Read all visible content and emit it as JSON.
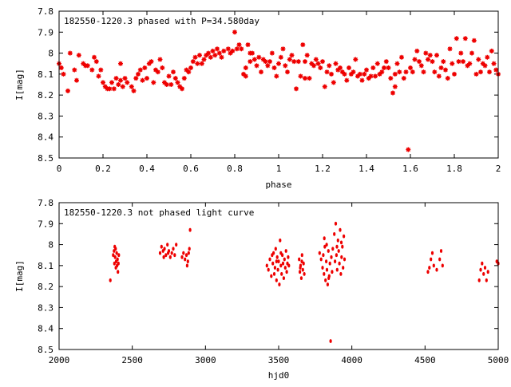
{
  "colors": {
    "points": "#ee0000",
    "axes": "#000000",
    "background": "#ffffff"
  },
  "chart_data": [
    {
      "type": "scatter",
      "title": "182550-1220.3 phased with P=34.580day",
      "xlabel": "phase",
      "ylabel": "I[mag]",
      "xlim": [
        0,
        2
      ],
      "ylim": [
        8.5,
        7.8
      ],
      "y_inverted": true,
      "xticks": [
        "0",
        "0.2",
        "0.4",
        "0.6",
        "0.8",
        "1",
        "1.2",
        "1.4",
        "1.6",
        "1.8",
        "2"
      ],
      "yticks": [
        "7.8",
        "7.9",
        "8",
        "8.1",
        "8.2",
        "8.3",
        "8.4",
        "8.5"
      ],
      "marker": "star",
      "grid": false,
      "points": [
        [
          0.0,
          8.05
        ],
        [
          0.01,
          8.07
        ],
        [
          0.02,
          8.1
        ],
        [
          0.04,
          8.18
        ],
        [
          0.05,
          8.0
        ],
        [
          0.07,
          8.08
        ],
        [
          0.08,
          8.13
        ],
        [
          0.09,
          8.01
        ],
        [
          0.11,
          8.05
        ],
        [
          0.12,
          8.06
        ],
        [
          0.13,
          8.06
        ],
        [
          0.15,
          8.08
        ],
        [
          0.16,
          8.02
        ],
        [
          0.17,
          8.04
        ],
        [
          0.18,
          8.11
        ],
        [
          0.19,
          8.08
        ],
        [
          0.2,
          8.14
        ],
        [
          0.21,
          8.16
        ],
        [
          0.22,
          8.17
        ],
        [
          0.23,
          8.17
        ],
        [
          0.24,
          8.14
        ],
        [
          0.25,
          8.17
        ],
        [
          0.26,
          8.12
        ],
        [
          0.27,
          8.15
        ],
        [
          0.28,
          8.05
        ],
        [
          0.28,
          8.13
        ],
        [
          0.29,
          8.16
        ],
        [
          0.3,
          8.12
        ],
        [
          0.31,
          8.14
        ],
        [
          0.33,
          8.16
        ],
        [
          0.34,
          8.18
        ],
        [
          0.35,
          8.12
        ],
        [
          0.36,
          8.1
        ],
        [
          0.37,
          8.08
        ],
        [
          0.38,
          8.13
        ],
        [
          0.39,
          8.07
        ],
        [
          0.4,
          8.12
        ],
        [
          0.41,
          8.05
        ],
        [
          0.42,
          8.04
        ],
        [
          0.43,
          8.14
        ],
        [
          0.44,
          8.08
        ],
        [
          0.45,
          8.09
        ],
        [
          0.46,
          8.03
        ],
        [
          0.47,
          8.07
        ],
        [
          0.48,
          8.14
        ],
        [
          0.49,
          8.15
        ],
        [
          0.5,
          8.11
        ],
        [
          0.51,
          8.15
        ],
        [
          0.52,
          8.09
        ],
        [
          0.53,
          8.12
        ],
        [
          0.54,
          8.14
        ],
        [
          0.55,
          8.16
        ],
        [
          0.56,
          8.17
        ],
        [
          0.57,
          8.12
        ],
        [
          0.58,
          8.08
        ],
        [
          0.59,
          8.09
        ],
        [
          0.6,
          8.07
        ],
        [
          0.61,
          8.04
        ],
        [
          0.62,
          8.02
        ],
        [
          0.63,
          8.05
        ],
        [
          0.64,
          8.01
        ],
        [
          0.65,
          8.05
        ],
        [
          0.66,
          8.03
        ],
        [
          0.67,
          8.01
        ],
        [
          0.68,
          8.0
        ],
        [
          0.69,
          8.02
        ],
        [
          0.7,
          7.99
        ],
        [
          0.71,
          8.01
        ],
        [
          0.72,
          7.98
        ],
        [
          0.73,
          8.0
        ],
        [
          0.74,
          8.02
        ],
        [
          0.75,
          7.99
        ],
        [
          0.77,
          7.98
        ],
        [
          0.78,
          8.0
        ],
        [
          0.79,
          7.99
        ],
        [
          0.8,
          7.9
        ],
        [
          0.81,
          7.98
        ],
        [
          0.82,
          7.96
        ],
        [
          0.83,
          7.98
        ],
        [
          0.84,
          8.1
        ],
        [
          0.85,
          8.07
        ],
        [
          0.85,
          8.11
        ],
        [
          0.86,
          7.96
        ],
        [
          0.87,
          8.0
        ],
        [
          0.87,
          8.04
        ],
        [
          0.88,
          8.0
        ],
        [
          0.89,
          8.03
        ],
        [
          0.9,
          8.06
        ],
        [
          0.91,
          8.02
        ],
        [
          0.92,
          8.09
        ],
        [
          0.93,
          8.03
        ],
        [
          0.94,
          8.04
        ],
        [
          0.95,
          8.06
        ],
        [
          0.96,
          8.04
        ],
        [
          0.97,
          8.0
        ],
        [
          0.98,
          8.07
        ],
        [
          0.99,
          8.11
        ],
        [
          1.0,
          8.05
        ],
        [
          1.01,
          8.02
        ],
        [
          1.02,
          7.98
        ],
        [
          1.03,
          8.06
        ],
        [
          1.04,
          8.09
        ],
        [
          1.05,
          8.03
        ],
        [
          1.06,
          8.01
        ],
        [
          1.07,
          8.04
        ],
        [
          1.08,
          8.17
        ],
        [
          1.09,
          8.04
        ],
        [
          1.1,
          8.11
        ],
        [
          1.11,
          7.96
        ],
        [
          1.12,
          8.12
        ],
        [
          1.12,
          8.04
        ],
        [
          1.13,
          8.01
        ],
        [
          1.14,
          8.12
        ],
        [
          1.15,
          8.05
        ],
        [
          1.16,
          8.06
        ],
        [
          1.17,
          8.03
        ],
        [
          1.18,
          8.05
        ],
        [
          1.19,
          8.07
        ],
        [
          1.2,
          8.04
        ],
        [
          1.21,
          8.16
        ],
        [
          1.22,
          8.09
        ],
        [
          1.23,
          8.06
        ],
        [
          1.24,
          8.1
        ],
        [
          1.25,
          8.14
        ],
        [
          1.26,
          8.05
        ],
        [
          1.27,
          8.08
        ],
        [
          1.28,
          8.07
        ],
        [
          1.29,
          8.09
        ],
        [
          1.3,
          8.1
        ],
        [
          1.31,
          8.13
        ],
        [
          1.32,
          8.07
        ],
        [
          1.33,
          8.1
        ],
        [
          1.34,
          8.09
        ],
        [
          1.35,
          8.03
        ],
        [
          1.36,
          8.11
        ],
        [
          1.37,
          8.1
        ],
        [
          1.38,
          8.13
        ],
        [
          1.39,
          8.1
        ],
        [
          1.4,
          8.08
        ],
        [
          1.41,
          8.12
        ],
        [
          1.42,
          8.11
        ],
        [
          1.43,
          8.07
        ],
        [
          1.44,
          8.11
        ],
        [
          1.45,
          8.05
        ],
        [
          1.46,
          8.1
        ],
        [
          1.47,
          8.09
        ],
        [
          1.48,
          8.07
        ],
        [
          1.49,
          8.04
        ],
        [
          1.5,
          8.07
        ],
        [
          1.51,
          8.12
        ],
        [
          1.52,
          8.19
        ],
        [
          1.53,
          8.1
        ],
        [
          1.53,
          8.16
        ],
        [
          1.54,
          8.05
        ],
        [
          1.55,
          8.09
        ],
        [
          1.56,
          8.02
        ],
        [
          1.57,
          8.12
        ],
        [
          1.58,
          8.09
        ],
        [
          1.59,
          8.46
        ],
        [
          1.6,
          8.07
        ],
        [
          1.61,
          8.09
        ],
        [
          1.62,
          8.03
        ],
        [
          1.63,
          7.99
        ],
        [
          1.64,
          8.04
        ],
        [
          1.65,
          8.06
        ],
        [
          1.66,
          8.09
        ],
        [
          1.67,
          8.0
        ],
        [
          1.68,
          8.03
        ],
        [
          1.69,
          8.01
        ],
        [
          1.7,
          8.04
        ],
        [
          1.71,
          8.09
        ],
        [
          1.72,
          8.01
        ],
        [
          1.73,
          8.11
        ],
        [
          1.74,
          8.07
        ],
        [
          1.75,
          8.04
        ],
        [
          1.76,
          8.08
        ],
        [
          1.77,
          8.12
        ],
        [
          1.78,
          7.98
        ],
        [
          1.79,
          8.05
        ],
        [
          1.8,
          8.1
        ],
        [
          1.81,
          7.93
        ],
        [
          1.82,
          8.04
        ],
        [
          1.83,
          8.0
        ],
        [
          1.84,
          8.04
        ],
        [
          1.85,
          7.93
        ],
        [
          1.86,
          8.06
        ],
        [
          1.87,
          8.05
        ],
        [
          1.88,
          8.0
        ],
        [
          1.89,
          7.94
        ],
        [
          1.9,
          8.1
        ],
        [
          1.91,
          8.03
        ],
        [
          1.92,
          8.09
        ],
        [
          1.93,
          8.05
        ],
        [
          1.94,
          8.06
        ],
        [
          1.95,
          8.02
        ],
        [
          1.96,
          8.09
        ],
        [
          1.97,
          7.99
        ],
        [
          1.98,
          8.05
        ],
        [
          1.99,
          8.08
        ],
        [
          2.0,
          8.1
        ]
      ]
    },
    {
      "type": "scatter",
      "title": "182550-1220.3 not phased light curve",
      "xlabel": "hjd0",
      "ylabel": "I[mag]",
      "xlim": [
        2000,
        5000
      ],
      "ylim": [
        8.5,
        7.8
      ],
      "y_inverted": true,
      "xticks": [
        "2000",
        "2500",
        "3000",
        "3500",
        "4000",
        "4500",
        "5000"
      ],
      "yticks": [
        "7.8",
        "7.9",
        "8",
        "8.1",
        "8.2",
        "8.3",
        "8.4",
        "8.5"
      ],
      "marker": "dot",
      "grid": false,
      "points": [
        [
          2350,
          8.17
        ],
        [
          2370,
          8.05
        ],
        [
          2375,
          8.03
        ],
        [
          2380,
          8.01
        ],
        [
          2383,
          8.06
        ],
        [
          2386,
          8.02
        ],
        [
          2390,
          8.08
        ],
        [
          2393,
          8.04
        ],
        [
          2396,
          8.1
        ],
        [
          2399,
          8.07
        ],
        [
          2402,
          8.13
        ],
        [
          2405,
          8.09
        ],
        [
          2408,
          8.05
        ],
        [
          2378,
          8.09
        ],
        [
          2388,
          8.11
        ],
        [
          2690,
          8.04
        ],
        [
          2700,
          8.01
        ],
        [
          2710,
          8.03
        ],
        [
          2720,
          8.02
        ],
        [
          2730,
          8.05
        ],
        [
          2740,
          8.0
        ],
        [
          2750,
          8.03
        ],
        [
          2760,
          8.06
        ],
        [
          2770,
          8.04
        ],
        [
          2780,
          8.02
        ],
        [
          2790,
          8.05
        ],
        [
          2800,
          8.0
        ],
        [
          2715,
          8.06
        ],
        [
          2745,
          8.04
        ],
        [
          2840,
          8.06
        ],
        [
          2850,
          8.04
        ],
        [
          2860,
          8.07
        ],
        [
          2870,
          8.05
        ],
        [
          2880,
          8.08
        ],
        [
          2890,
          8.02
        ],
        [
          2895,
          7.93
        ],
        [
          2875,
          8.1
        ],
        [
          2885,
          8.04
        ],
        [
          3420,
          8.1
        ],
        [
          3430,
          8.12
        ],
        [
          3440,
          8.07
        ],
        [
          3450,
          8.15
        ],
        [
          3460,
          8.09
        ],
        [
          3465,
          8.04
        ],
        [
          3470,
          8.14
        ],
        [
          3475,
          8.11
        ],
        [
          3480,
          8.02
        ],
        [
          3485,
          8.17
        ],
        [
          3490,
          8.06
        ],
        [
          3495,
          8.12
        ],
        [
          3500,
          8.08
        ],
        [
          3505,
          8.19
        ],
        [
          3510,
          7.98
        ],
        [
          3515,
          8.1
        ],
        [
          3520,
          8.14
        ],
        [
          3525,
          8.05
        ],
        [
          3530,
          8.09
        ],
        [
          3535,
          8.16
        ],
        [
          3540,
          8.07
        ],
        [
          3545,
          8.11
        ],
        [
          3550,
          8.03
        ],
        [
          3555,
          8.13
        ],
        [
          3560,
          8.09
        ],
        [
          3565,
          8.06
        ],
        [
          3570,
          8.1
        ],
        [
          3455,
          8.05
        ],
        [
          3485,
          8.08
        ],
        [
          3515,
          8.04
        ],
        [
          3640,
          8.07
        ],
        [
          3645,
          8.13
        ],
        [
          3650,
          8.1
        ],
        [
          3655,
          8.16
        ],
        [
          3660,
          8.05
        ],
        [
          3665,
          8.12
        ],
        [
          3670,
          8.09
        ],
        [
          3675,
          8.14
        ],
        [
          3648,
          8.11
        ],
        [
          3658,
          8.08
        ],
        [
          3780,
          8.04
        ],
        [
          3790,
          8.07
        ],
        [
          3800,
          8.11
        ],
        [
          3805,
          8.05
        ],
        [
          3810,
          8.14
        ],
        [
          3815,
          8.01
        ],
        [
          3820,
          8.17
        ],
        [
          3825,
          8.08
        ],
        [
          3830,
          8.12
        ],
        [
          3835,
          8.19
        ],
        [
          3840,
          8.03
        ],
        [
          3845,
          8.15
        ],
        [
          3850,
          8.09
        ],
        [
          3855,
          8.46
        ],
        [
          3860,
          8.06
        ],
        [
          3865,
          8.13
        ],
        [
          3870,
          8.02
        ],
        [
          3880,
          7.95
        ],
        [
          3885,
          8.08
        ],
        [
          3890,
          7.9
        ],
        [
          3895,
          8.05
        ],
        [
          3900,
          8.12
        ],
        [
          3905,
          7.98
        ],
        [
          3910,
          8.03
        ],
        [
          3915,
          8.09
        ],
        [
          3920,
          7.93
        ],
        [
          3925,
          8.14
        ],
        [
          3930,
          8.06
        ],
        [
          3935,
          8.01
        ],
        [
          3940,
          8.11
        ],
        [
          3945,
          7.96
        ],
        [
          3950,
          8.07
        ],
        [
          3812,
          7.97
        ],
        [
          3828,
          8.0
        ],
        [
          3842,
          8.16
        ],
        [
          3898,
          8.01
        ],
        [
          3928,
          7.99
        ],
        [
          4520,
          8.13
        ],
        [
          4530,
          8.11
        ],
        [
          4540,
          8.07
        ],
        [
          4550,
          8.04
        ],
        [
          4560,
          8.1
        ],
        [
          4580,
          8.12
        ],
        [
          4600,
          8.07
        ],
        [
          4610,
          8.03
        ],
        [
          4620,
          8.1
        ],
        [
          4870,
          8.17
        ],
        [
          4880,
          8.12
        ],
        [
          4890,
          8.09
        ],
        [
          4900,
          8.14
        ],
        [
          4910,
          8.11
        ],
        [
          4920,
          8.17
        ],
        [
          4930,
          8.13
        ],
        [
          4990,
          8.08
        ],
        [
          5000,
          8.09
        ]
      ]
    }
  ]
}
